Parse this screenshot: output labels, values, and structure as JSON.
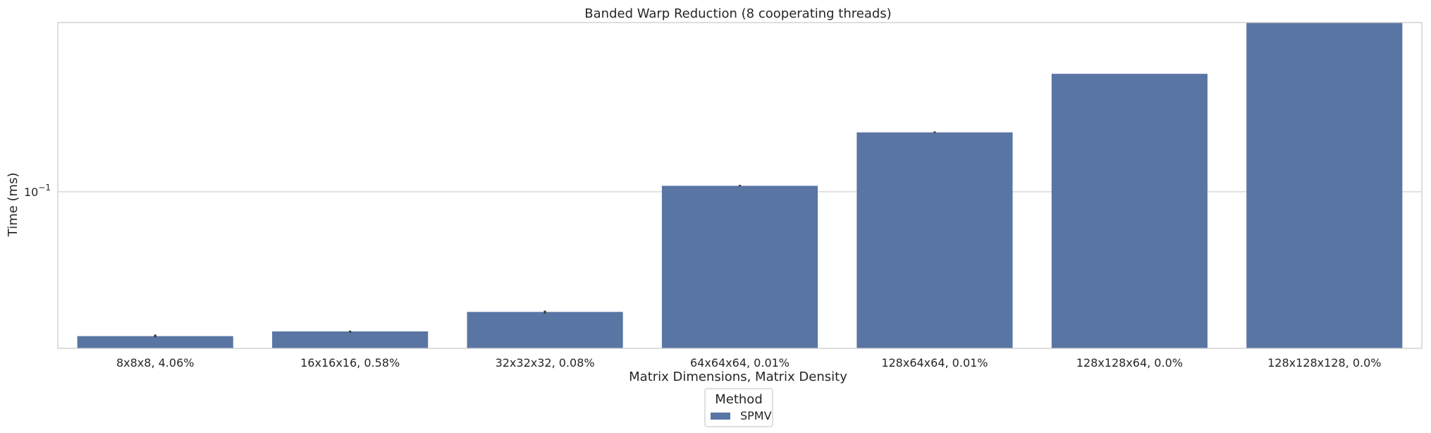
{
  "chart_data": {
    "type": "bar",
    "title": "Banded Warp Reduction (8 cooperating threads)",
    "xlabel": "Matrix Dimensions, Matrix Density",
    "ylabel": "Time (ms)",
    "yscale": "log",
    "ylim": [
      0.0265,
      0.42
    ],
    "yticks": [
      {
        "value": 0.1,
        "base": "10",
        "exponent": "−1"
      }
    ],
    "grid": "horizontal",
    "legend": {
      "title": "Method",
      "placement": "bottom-center",
      "entries": [
        "SPMV"
      ]
    },
    "categories": [
      "8x8x8, 4.06%",
      "16x16x16, 0.58%",
      "32x32x32, 0.08%",
      "64x64x64, 0.01%",
      "128x64x64, 0.01%",
      "128x128x64, 0.0%",
      "128x128x128, 0.0%"
    ],
    "series": [
      {
        "name": "SPMV",
        "color": "#5975a4",
        "values": [
          0.0294,
          0.0306,
          0.0361,
          0.1052,
          0.1655,
          0.272,
          0.459
        ],
        "error": [
          [
            0.0291,
            0.0298
          ],
          [
            0.0303,
            0.0308
          ],
          [
            0.0356,
            0.0365
          ],
          [
            0.1048,
            0.1059
          ],
          [
            0.1648,
            0.1667
          ],
          null,
          null
        ]
      }
    ]
  }
}
